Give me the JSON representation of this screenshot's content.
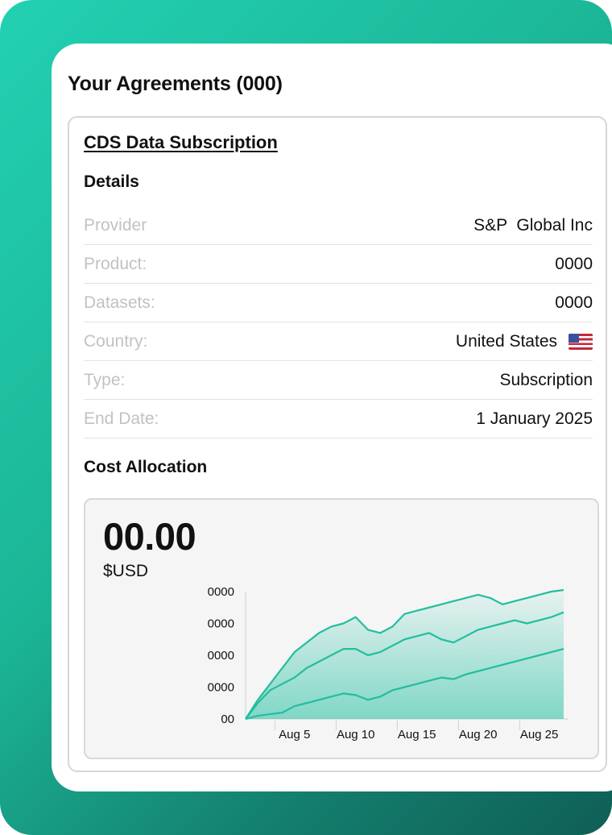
{
  "page": {
    "title": "Your Agreements (000)"
  },
  "agreement": {
    "name": "CDS Data Subscription",
    "details_heading": "Details",
    "details": [
      {
        "label": "Provider",
        "value": "S&P  Global Inc"
      },
      {
        "label": "Product:",
        "value": "0000"
      },
      {
        "label": "Datasets:",
        "value": "0000"
      },
      {
        "label": "Country:",
        "value": "United States",
        "icon": "us-flag-icon"
      },
      {
        "label": "Type:",
        "value": "Subscription"
      },
      {
        "label": "End Date:",
        "value": "1 January 2025"
      }
    ],
    "cost_heading": "Cost Allocation",
    "cost": {
      "amount": "00.00",
      "currency": "$USD"
    }
  },
  "colors": {
    "accent": "#20bfa0",
    "gradient_start": "#22d1b2",
    "gradient_end": "#0f5f55"
  },
  "chart_data": {
    "type": "area",
    "x": [
      1,
      2,
      3,
      4,
      5,
      6,
      7,
      8,
      9,
      10,
      11,
      12,
      13,
      14,
      15,
      16,
      17,
      18,
      19,
      20,
      21,
      22,
      23,
      24,
      25,
      26,
      27
    ],
    "xticks": [
      5,
      10,
      15,
      20,
      25
    ],
    "xtick_labels": [
      "Aug 5",
      "Aug 10",
      "Aug 15",
      "Aug 20",
      "Aug 25"
    ],
    "ylim": [
      0,
      4
    ],
    "yticks": [
      0,
      1,
      2,
      3,
      4
    ],
    "ytick_labels": [
      "00",
      "0000",
      "0000",
      "0000",
      "0000"
    ],
    "series": [
      {
        "values": [
          0,
          0.6,
          1.1,
          1.6,
          2.1,
          2.4,
          2.7,
          2.9,
          3.0,
          3.2,
          2.8,
          2.7,
          2.9,
          3.3,
          3.4,
          3.5,
          3.6,
          3.7,
          3.8,
          3.9,
          3.8,
          3.6,
          3.7,
          3.8,
          3.9,
          4.0,
          4.05
        ]
      },
      {
        "values": [
          0,
          0.5,
          0.9,
          1.1,
          1.3,
          1.6,
          1.8,
          2.0,
          2.2,
          2.2,
          2.0,
          2.1,
          2.3,
          2.5,
          2.6,
          2.7,
          2.5,
          2.4,
          2.6,
          2.8,
          2.9,
          3.0,
          3.1,
          3.0,
          3.1,
          3.2,
          3.35
        ]
      },
      {
        "values": [
          0,
          0.1,
          0.15,
          0.2,
          0.4,
          0.5,
          0.6,
          0.7,
          0.8,
          0.75,
          0.6,
          0.7,
          0.9,
          1.0,
          1.1,
          1.2,
          1.3,
          1.25,
          1.4,
          1.5,
          1.6,
          1.7,
          1.8,
          1.9,
          2.0,
          2.1,
          2.2
        ]
      }
    ]
  }
}
